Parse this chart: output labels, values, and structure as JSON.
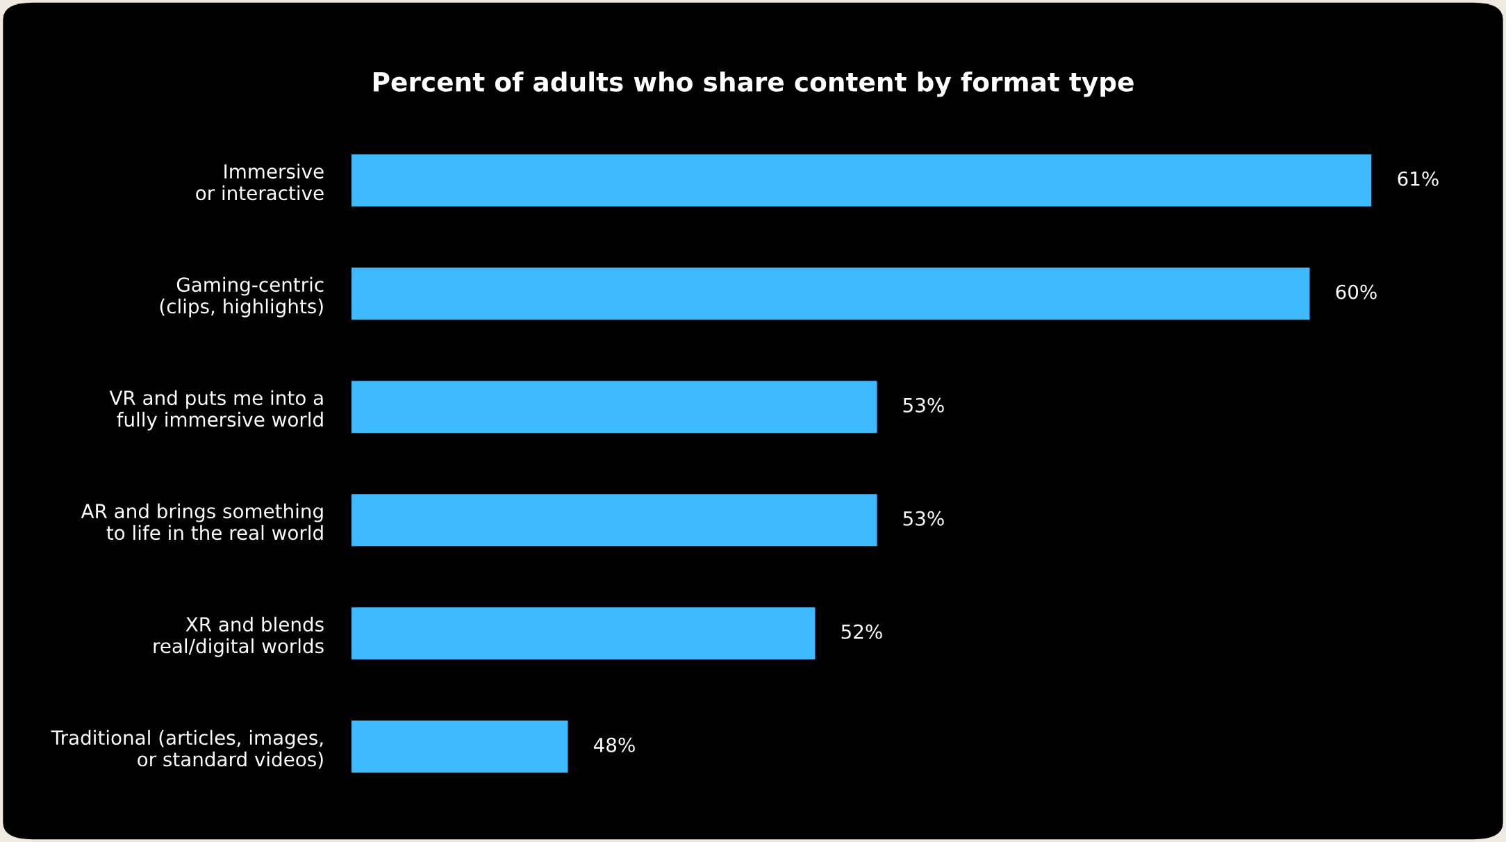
{
  "chart_data": {
    "type": "bar",
    "orientation": "horizontal",
    "title": "Percent of adults who share content by format type",
    "categories": [
      "Immersive\nor interactive",
      "Gaming-centric\n(clips, highlights)",
      "VR and puts me into a\nfully immersive world",
      "AR and brings something\nto life in the real world",
      "XR and blends\nreal/digital worlds",
      "Traditional (articles, images,\nor standard videos)"
    ],
    "values": [
      61,
      60,
      53,
      53,
      52,
      48
    ],
    "value_labels": [
      "61%",
      "60%",
      "53%",
      "53%",
      "52%",
      "48%"
    ],
    "color": "#3fbaff",
    "xlim": [
      44.5,
      61
    ],
    "tick_labels": "y",
    "grid": false,
    "legend": false
  }
}
